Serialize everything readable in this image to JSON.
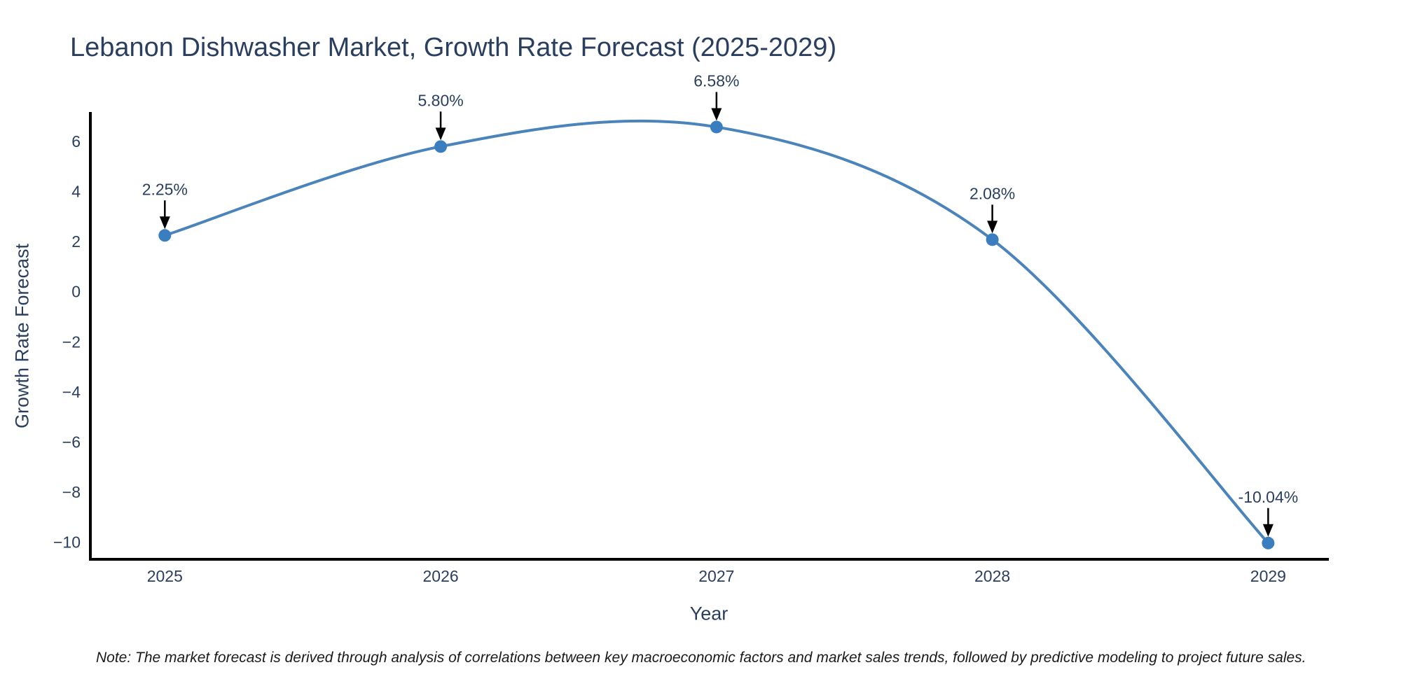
{
  "chart_data": {
    "type": "line",
    "title": "Lebanon Dishwasher Market, Growth Rate Forecast (2025-2029)",
    "xlabel": "Year",
    "ylabel": "Growth Rate Forecast",
    "line_shape": "spline",
    "grid": false,
    "legend": "none",
    "x": [
      2025,
      2026,
      2027,
      2028,
      2029
    ],
    "y": [
      2.25,
      5.8,
      6.58,
      2.08,
      -10.04
    ],
    "point_labels": [
      "2.25%",
      "5.80%",
      "6.58%",
      "2.08%",
      "-10.04%"
    ],
    "x_ticks": {
      "values": [
        2025,
        2026,
        2027,
        2028,
        2029
      ],
      "labels": [
        "2025",
        "2026",
        "2027",
        "2028",
        "2029"
      ]
    },
    "y_ticks": {
      "values": [
        6,
        4,
        2,
        0,
        -2,
        -4,
        -6,
        -8,
        -10
      ],
      "labels": [
        "6",
        "4",
        "2",
        "0",
        "−2",
        "−4",
        "−6",
        "−8",
        "−10"
      ]
    },
    "xlim": [
      2024.73,
      2029.22
    ],
    "ylim": [
      -10.69,
      7.18
    ],
    "colors": {
      "line": "#4a84ba",
      "marker": "#3b7ec0",
      "axis": "#000000",
      "text": "#2a3f5f",
      "annotation_text": "#2a3f5f",
      "annotation_arrow": "#000000"
    }
  },
  "note": {
    "text": "Note: The market forecast is derived through analysis of correlations between key macroeconomic factors and market sales trends, followed by predictive modeling to project future sales."
  }
}
